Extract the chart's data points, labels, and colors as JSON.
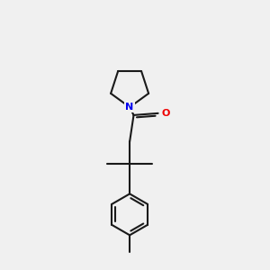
{
  "background_color": "#f0f0f0",
  "bond_color": "#1a1a1a",
  "N_color": "#0000ee",
  "O_color": "#ee0000",
  "line_width": 1.5,
  "fig_size": [
    3.0,
    3.0
  ],
  "dpi": 100
}
